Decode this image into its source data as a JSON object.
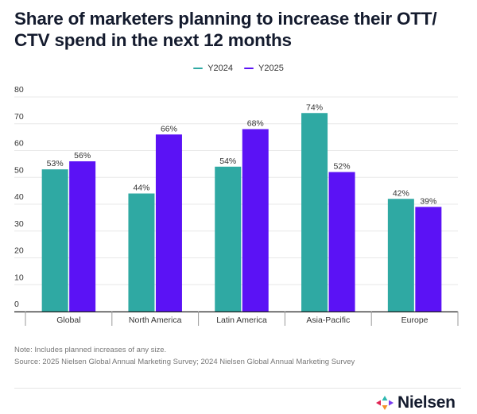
{
  "colors": {
    "y2024": "#2fa9a3",
    "y2025": "#5b12f5",
    "title": "#141b2e",
    "grid": "#e8e8e8",
    "axis": "#222222",
    "logo_left": "#e02454",
    "logo_top": "#2fb8b0",
    "logo_right": "#7a3cf0",
    "logo_bottom": "#f3902b"
  },
  "chart_data": {
    "type": "bar",
    "title": "Share of marketers planning to increase their OTT/ CTV spend in the next 12 months",
    "xlabel": "",
    "ylabel": "",
    "ylim": [
      0,
      80
    ],
    "yticks": [
      0,
      10,
      20,
      30,
      40,
      50,
      60,
      70,
      80
    ],
    "grid": true,
    "legend_position": "top-center",
    "categories": [
      "Global",
      "North America",
      "Latin America",
      "Asia-Pacific",
      "Europe"
    ],
    "series": [
      {
        "name": "Y2024",
        "values": [
          53,
          44,
          54,
          74,
          42
        ],
        "labels": [
          "53%",
          "44%",
          "54%",
          "74%",
          "42%"
        ]
      },
      {
        "name": "Y2025",
        "values": [
          56,
          66,
          68,
          52,
          39
        ],
        "labels": [
          "56%",
          "66%",
          "68%",
          "52%",
          "39%"
        ]
      }
    ]
  },
  "legend": [
    {
      "label": "Y2024",
      "color_key": "y2024"
    },
    {
      "label": "Y2025",
      "color_key": "y2025"
    }
  ],
  "footer": {
    "note": "Note: Includes planned increases of any size.",
    "source": "Source: 2025 Nielsen Global Annual Marketing Survey; 2024 Nielsen Global Annual Marketing Survey"
  },
  "logo": {
    "text": "Nielsen",
    "icon": "nielsen-arrows-icon"
  }
}
